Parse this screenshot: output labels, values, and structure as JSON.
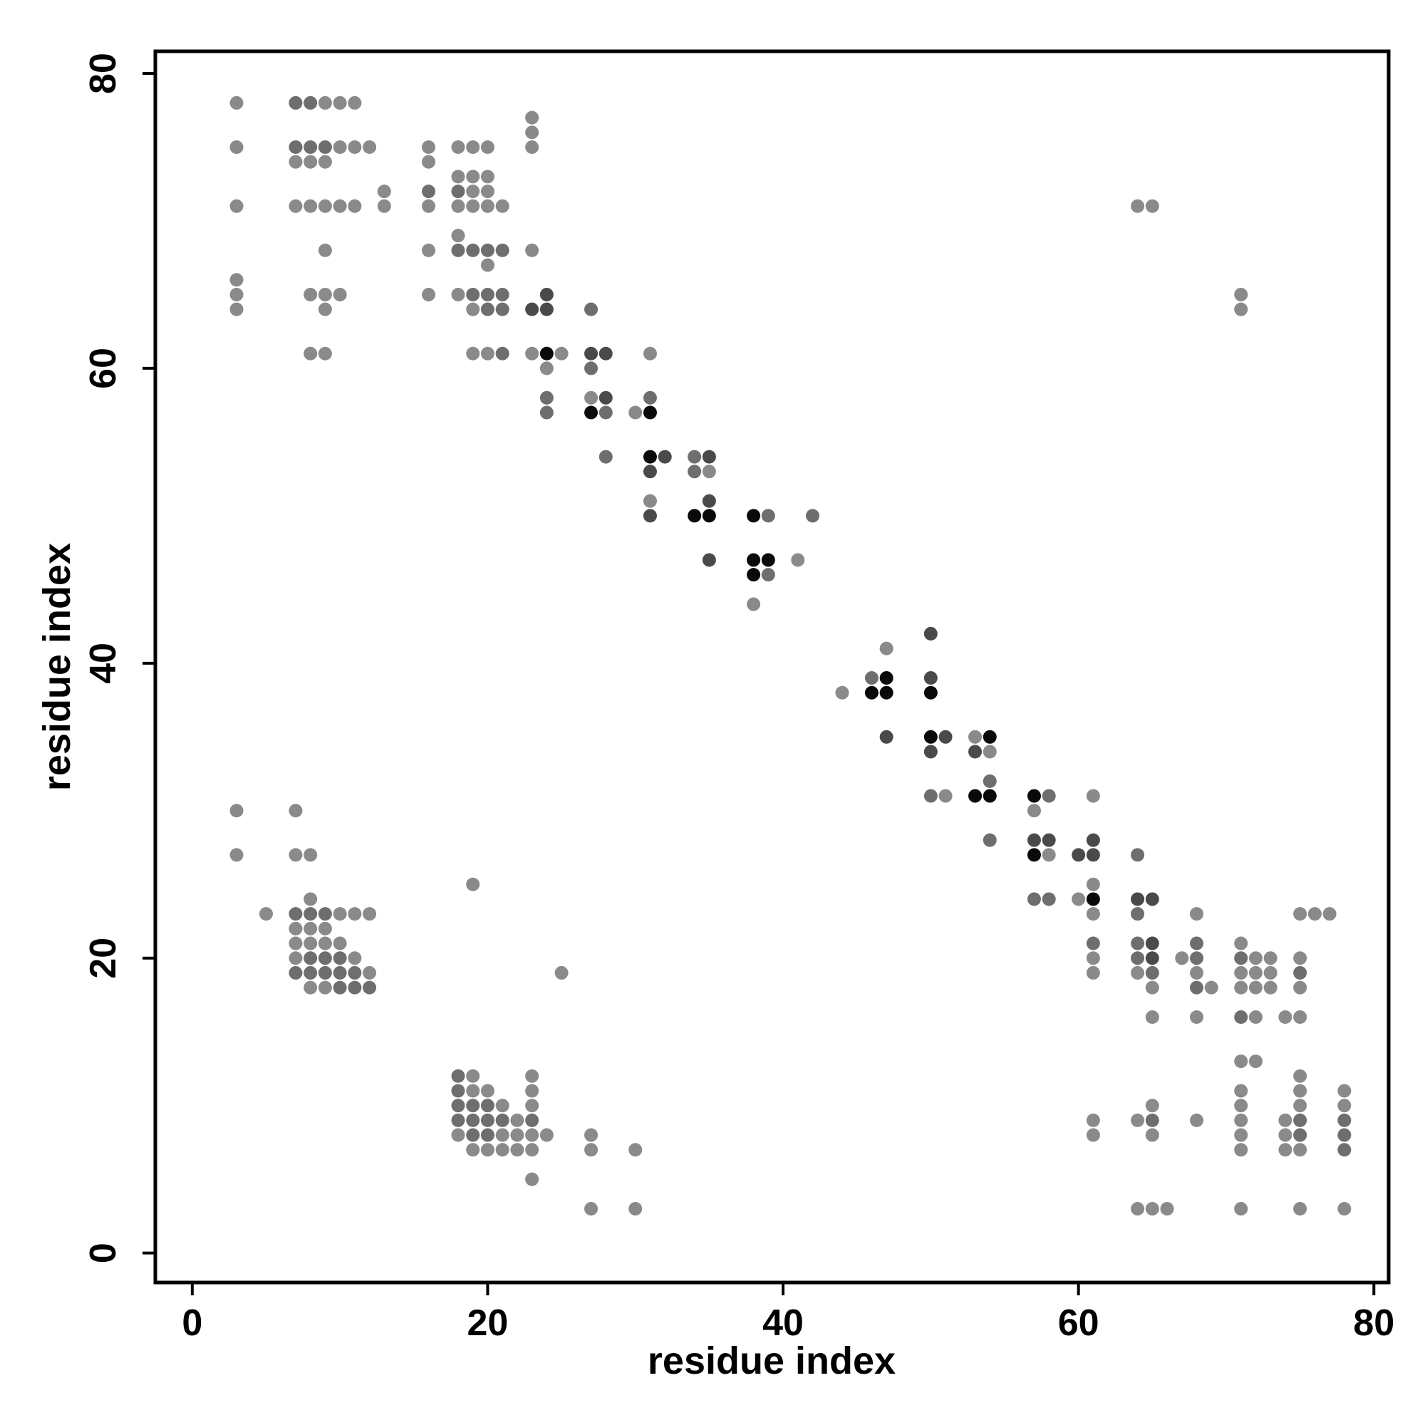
{
  "chart_data": {
    "type": "scatter",
    "title": "",
    "xlabel": "residue index",
    "ylabel": "residue index",
    "xlim": [
      -2.5,
      81
    ],
    "ylim": [
      -2,
      81.5
    ],
    "x_ticks": [
      0,
      20,
      40,
      60,
      80
    ],
    "y_ticks": [
      0,
      20,
      40,
      60,
      80
    ],
    "x_tick_labels": [
      "0",
      "20",
      "40",
      "60",
      "80"
    ],
    "y_tick_labels": [
      "0",
      "20",
      "40",
      "60",
      "80"
    ],
    "grid": false,
    "legend": "none",
    "point_colors": {
      "light": "#8a8a8a",
      "medium": "#6e6e6e",
      "dark": "#4a4a4a",
      "black": "#0a0a0a"
    },
    "points": [
      [
        3,
        78,
        "light"
      ],
      [
        3,
        75,
        "light"
      ],
      [
        3,
        71,
        "light"
      ],
      [
        3,
        66,
        "light"
      ],
      [
        3,
        65,
        "light"
      ],
      [
        3,
        64,
        "light"
      ],
      [
        7,
        78,
        "medium"
      ],
      [
        8,
        78,
        "medium"
      ],
      [
        9,
        78,
        "light"
      ],
      [
        10,
        78,
        "light"
      ],
      [
        11,
        78,
        "light"
      ],
      [
        7,
        75,
        "medium"
      ],
      [
        8,
        75,
        "medium"
      ],
      [
        9,
        75,
        "medium"
      ],
      [
        10,
        75,
        "light"
      ],
      [
        11,
        75,
        "light"
      ],
      [
        12,
        75,
        "light"
      ],
      [
        7,
        74,
        "light"
      ],
      [
        8,
        74,
        "light"
      ],
      [
        9,
        74,
        "light"
      ],
      [
        7,
        71,
        "light"
      ],
      [
        8,
        71,
        "light"
      ],
      [
        9,
        71,
        "light"
      ],
      [
        10,
        71,
        "light"
      ],
      [
        11,
        71,
        "light"
      ],
      [
        9,
        68,
        "light"
      ],
      [
        8,
        65,
        "light"
      ],
      [
        9,
        65,
        "light"
      ],
      [
        10,
        65,
        "light"
      ],
      [
        9,
        64,
        "light"
      ],
      [
        8,
        61,
        "light"
      ],
      [
        9,
        61,
        "light"
      ],
      [
        13,
        72,
        "light"
      ],
      [
        13,
        71,
        "light"
      ],
      [
        16,
        75,
        "light"
      ],
      [
        16,
        74,
        "light"
      ],
      [
        16,
        72,
        "medium"
      ],
      [
        16,
        71,
        "light"
      ],
      [
        16,
        68,
        "light"
      ],
      [
        16,
        65,
        "light"
      ],
      [
        18,
        75,
        "light"
      ],
      [
        19,
        75,
        "light"
      ],
      [
        20,
        75,
        "light"
      ],
      [
        18,
        73,
        "light"
      ],
      [
        19,
        73,
        "light"
      ],
      [
        20,
        73,
        "light"
      ],
      [
        18,
        72,
        "medium"
      ],
      [
        19,
        72,
        "light"
      ],
      [
        20,
        72,
        "light"
      ],
      [
        18,
        71,
        "light"
      ],
      [
        19,
        71,
        "light"
      ],
      [
        20,
        71,
        "light"
      ],
      [
        21,
        71,
        "light"
      ],
      [
        18,
        69,
        "light"
      ],
      [
        18,
        68,
        "medium"
      ],
      [
        19,
        68,
        "medium"
      ],
      [
        20,
        68,
        "medium"
      ],
      [
        21,
        68,
        "medium"
      ],
      [
        20,
        67,
        "light"
      ],
      [
        18,
        65,
        "light"
      ],
      [
        19,
        65,
        "medium"
      ],
      [
        20,
        65,
        "medium"
      ],
      [
        21,
        65,
        "medium"
      ],
      [
        19,
        64,
        "light"
      ],
      [
        20,
        64,
        "medium"
      ],
      [
        21,
        64,
        "medium"
      ],
      [
        19,
        61,
        "light"
      ],
      [
        20,
        61,
        "light"
      ],
      [
        21,
        61,
        "medium"
      ],
      [
        23,
        77,
        "light"
      ],
      [
        23,
        76,
        "light"
      ],
      [
        23,
        75,
        "light"
      ],
      [
        23,
        68,
        "light"
      ],
      [
        23,
        64,
        "dark"
      ],
      [
        24,
        65,
        "dark"
      ],
      [
        24,
        64,
        "dark"
      ],
      [
        23,
        61,
        "light"
      ],
      [
        24,
        61,
        "black"
      ],
      [
        25,
        61,
        "light"
      ],
      [
        24,
        60,
        "light"
      ],
      [
        24,
        58,
        "medium"
      ],
      [
        24,
        57,
        "medium"
      ],
      [
        27,
        64,
        "medium"
      ],
      [
        27,
        61,
        "dark"
      ],
      [
        28,
        61,
        "dark"
      ],
      [
        27,
        60,
        "medium"
      ],
      [
        27,
        58,
        "light"
      ],
      [
        28,
        58,
        "dark"
      ],
      [
        27,
        57,
        "black"
      ],
      [
        28,
        57,
        "medium"
      ],
      [
        28,
        54,
        "medium"
      ],
      [
        30,
        57,
        "light"
      ],
      [
        31,
        57,
        "black"
      ],
      [
        31,
        58,
        "medium"
      ],
      [
        31,
        61,
        "light"
      ],
      [
        31,
        54,
        "black"
      ],
      [
        32,
        54,
        "dark"
      ],
      [
        31,
        53,
        "dark"
      ],
      [
        31,
        51,
        "light"
      ],
      [
        31,
        50,
        "dark"
      ],
      [
        34,
        54,
        "medium"
      ],
      [
        35,
        54,
        "dark"
      ],
      [
        34,
        53,
        "medium"
      ],
      [
        35,
        53,
        "light"
      ],
      [
        35,
        51,
        "dark"
      ],
      [
        34,
        50,
        "black"
      ],
      [
        35,
        50,
        "black"
      ],
      [
        35,
        47,
        "dark"
      ],
      [
        38,
        50,
        "black"
      ],
      [
        39,
        50,
        "medium"
      ],
      [
        42,
        50,
        "medium"
      ],
      [
        38,
        47,
        "black"
      ],
      [
        39,
        47,
        "black"
      ],
      [
        38,
        46,
        "black"
      ],
      [
        39,
        46,
        "medium"
      ],
      [
        41,
        47,
        "light"
      ],
      [
        38,
        44,
        "light"
      ],
      [
        44,
        38,
        "light"
      ],
      [
        46,
        39,
        "medium"
      ],
      [
        47,
        39,
        "black"
      ],
      [
        46,
        38,
        "black"
      ],
      [
        47,
        38,
        "black"
      ],
      [
        47,
        41,
        "light"
      ],
      [
        47,
        35,
        "dark"
      ],
      [
        50,
        42,
        "dark"
      ],
      [
        50,
        39,
        "dark"
      ],
      [
        50,
        38,
        "black"
      ],
      [
        50,
        35,
        "black"
      ],
      [
        51,
        35,
        "dark"
      ],
      [
        50,
        34,
        "dark"
      ],
      [
        50,
        31,
        "medium"
      ],
      [
        51,
        31,
        "light"
      ],
      [
        53,
        35,
        "light"
      ],
      [
        54,
        35,
        "black"
      ],
      [
        53,
        34,
        "dark"
      ],
      [
        54,
        34,
        "light"
      ],
      [
        54,
        32,
        "medium"
      ],
      [
        53,
        31,
        "black"
      ],
      [
        54,
        31,
        "black"
      ],
      [
        54,
        28,
        "medium"
      ],
      [
        57,
        31,
        "black"
      ],
      [
        58,
        31,
        "medium"
      ],
      [
        57,
        30,
        "light"
      ],
      [
        57,
        28,
        "dark"
      ],
      [
        58,
        28,
        "dark"
      ],
      [
        57,
        27,
        "black"
      ],
      [
        58,
        27,
        "light"
      ],
      [
        57,
        24,
        "medium"
      ],
      [
        58,
        24,
        "medium"
      ],
      [
        60,
        27,
        "dark"
      ],
      [
        61,
        28,
        "dark"
      ],
      [
        61,
        27,
        "dark"
      ],
      [
        61,
        31,
        "light"
      ],
      [
        61,
        25,
        "light"
      ],
      [
        60,
        24,
        "light"
      ],
      [
        61,
        24,
        "black"
      ],
      [
        61,
        23,
        "light"
      ],
      [
        61,
        21,
        "medium"
      ],
      [
        61,
        20,
        "light"
      ],
      [
        61,
        19,
        "light"
      ],
      [
        64,
        27,
        "medium"
      ],
      [
        64,
        24,
        "dark"
      ],
      [
        65,
        24,
        "dark"
      ],
      [
        64,
        23,
        "medium"
      ],
      [
        64,
        21,
        "medium"
      ],
      [
        65,
        21,
        "dark"
      ],
      [
        64,
        20,
        "medium"
      ],
      [
        65,
        20,
        "dark"
      ],
      [
        64,
        19,
        "light"
      ],
      [
        65,
        19,
        "medium"
      ],
      [
        65,
        18,
        "light"
      ],
      [
        65,
        16,
        "light"
      ],
      [
        67,
        20,
        "light"
      ],
      [
        68,
        23,
        "light"
      ],
      [
        68,
        21,
        "medium"
      ],
      [
        68,
        20,
        "medium"
      ],
      [
        68,
        19,
        "light"
      ],
      [
        68,
        18,
        "medium"
      ],
      [
        69,
        18,
        "light"
      ],
      [
        68,
        16,
        "light"
      ],
      [
        71,
        21,
        "light"
      ],
      [
        72,
        20,
        "light"
      ],
      [
        73,
        20,
        "light"
      ],
      [
        71,
        20,
        "medium"
      ],
      [
        71,
        19,
        "light"
      ],
      [
        72,
        19,
        "light"
      ],
      [
        73,
        19,
        "light"
      ],
      [
        71,
        18,
        "light"
      ],
      [
        72,
        18,
        "light"
      ],
      [
        73,
        18,
        "light"
      ],
      [
        71,
        16,
        "medium"
      ],
      [
        72,
        16,
        "light"
      ],
      [
        75,
        23,
        "light"
      ],
      [
        76,
        23,
        "light"
      ],
      [
        77,
        23,
        "light"
      ],
      [
        75,
        20,
        "light"
      ],
      [
        75,
        19,
        "medium"
      ],
      [
        75,
        18,
        "light"
      ],
      [
        74,
        16,
        "light"
      ],
      [
        75,
        16,
        "light"
      ],
      [
        71,
        13,
        "light"
      ],
      [
        72,
        13,
        "light"
      ],
      [
        71,
        11,
        "light"
      ],
      [
        71,
        10,
        "light"
      ],
      [
        71,
        9,
        "light"
      ],
      [
        71,
        8,
        "light"
      ],
      [
        71,
        7,
        "light"
      ],
      [
        71,
        3,
        "light"
      ],
      [
        74,
        9,
        "light"
      ],
      [
        75,
        9,
        "medium"
      ],
      [
        74,
        8,
        "light"
      ],
      [
        75,
        8,
        "medium"
      ],
      [
        74,
        7,
        "light"
      ],
      [
        75,
        7,
        "light"
      ],
      [
        75,
        12,
        "light"
      ],
      [
        75,
        11,
        "light"
      ],
      [
        75,
        10,
        "light"
      ],
      [
        75,
        3,
        "light"
      ],
      [
        78,
        11,
        "light"
      ],
      [
        78,
        10,
        "light"
      ],
      [
        78,
        9,
        "medium"
      ],
      [
        78,
        8,
        "medium"
      ],
      [
        78,
        7,
        "medium"
      ],
      [
        78,
        3,
        "light"
      ],
      [
        61,
        9,
        "light"
      ],
      [
        61,
        8,
        "light"
      ],
      [
        64,
        9,
        "light"
      ],
      [
        65,
        10,
        "light"
      ],
      [
        65,
        9,
        "medium"
      ],
      [
        65,
        8,
        "light"
      ],
      [
        64,
        3,
        "light"
      ],
      [
        65,
        3,
        "light"
      ],
      [
        66,
        3,
        "light"
      ],
      [
        68,
        9,
        "light"
      ],
      [
        71,
        65,
        "light"
      ],
      [
        71,
        64,
        "light"
      ],
      [
        64,
        71,
        "light"
      ],
      [
        65,
        71,
        "light"
      ],
      [
        3,
        30,
        "light"
      ],
      [
        3,
        27,
        "light"
      ],
      [
        7,
        30,
        "light"
      ],
      [
        7,
        27,
        "light"
      ],
      [
        8,
        27,
        "light"
      ],
      [
        5,
        23,
        "light"
      ],
      [
        7,
        23,
        "medium"
      ],
      [
        8,
        23,
        "medium"
      ],
      [
        9,
        23,
        "medium"
      ],
      [
        10,
        23,
        "light"
      ],
      [
        11,
        23,
        "light"
      ],
      [
        12,
        23,
        "light"
      ],
      [
        8,
        24,
        "light"
      ],
      [
        7,
        22,
        "light"
      ],
      [
        8,
        22,
        "light"
      ],
      [
        9,
        22,
        "light"
      ],
      [
        7,
        21,
        "light"
      ],
      [
        8,
        21,
        "light"
      ],
      [
        9,
        21,
        "light"
      ],
      [
        10,
        21,
        "light"
      ],
      [
        7,
        20,
        "light"
      ],
      [
        8,
        20,
        "medium"
      ],
      [
        9,
        20,
        "medium"
      ],
      [
        10,
        20,
        "medium"
      ],
      [
        11,
        20,
        "light"
      ],
      [
        7,
        19,
        "medium"
      ],
      [
        8,
        19,
        "medium"
      ],
      [
        9,
        19,
        "medium"
      ],
      [
        10,
        19,
        "medium"
      ],
      [
        11,
        19,
        "medium"
      ],
      [
        12,
        19,
        "light"
      ],
      [
        8,
        18,
        "light"
      ],
      [
        9,
        18,
        "light"
      ],
      [
        10,
        18,
        "medium"
      ],
      [
        11,
        18,
        "medium"
      ],
      [
        12,
        18,
        "medium"
      ],
      [
        19,
        25,
        "light"
      ],
      [
        25,
        19,
        "light"
      ],
      [
        18,
        12,
        "medium"
      ],
      [
        19,
        12,
        "light"
      ],
      [
        18,
        11,
        "medium"
      ],
      [
        19,
        11,
        "light"
      ],
      [
        20,
        11,
        "light"
      ],
      [
        18,
        10,
        "medium"
      ],
      [
        19,
        10,
        "medium"
      ],
      [
        20,
        10,
        "medium"
      ],
      [
        21,
        10,
        "light"
      ],
      [
        18,
        9,
        "medium"
      ],
      [
        19,
        9,
        "medium"
      ],
      [
        20,
        9,
        "medium"
      ],
      [
        21,
        9,
        "medium"
      ],
      [
        22,
        9,
        "light"
      ],
      [
        18,
        8,
        "light"
      ],
      [
        19,
        8,
        "medium"
      ],
      [
        20,
        8,
        "medium"
      ],
      [
        21,
        8,
        "light"
      ],
      [
        22,
        8,
        "light"
      ],
      [
        19,
        7,
        "light"
      ],
      [
        20,
        7,
        "light"
      ],
      [
        21,
        7,
        "light"
      ],
      [
        22,
        7,
        "light"
      ],
      [
        23,
        12,
        "light"
      ],
      [
        23,
        11,
        "light"
      ],
      [
        23,
        10,
        "light"
      ],
      [
        23,
        9,
        "medium"
      ],
      [
        23,
        8,
        "light"
      ],
      [
        24,
        8,
        "light"
      ],
      [
        23,
        7,
        "light"
      ],
      [
        23,
        5,
        "light"
      ],
      [
        27,
        8,
        "light"
      ],
      [
        27,
        7,
        "light"
      ],
      [
        27,
        3,
        "light"
      ],
      [
        30,
        7,
        "light"
      ],
      [
        30,
        3,
        "light"
      ]
    ]
  }
}
